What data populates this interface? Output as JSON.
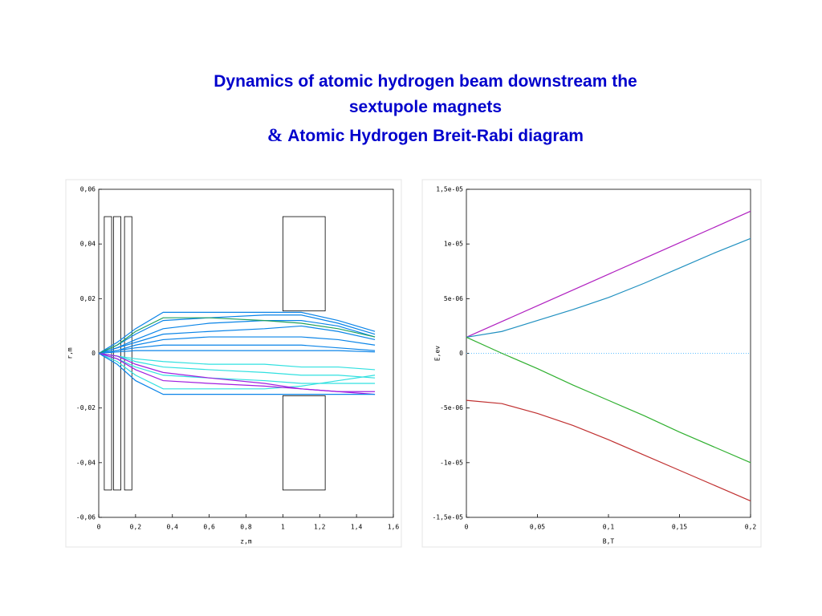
{
  "title": {
    "lines": [
      "Dynamics of atomic hydrogen beam downstream the",
      "sextupole magnets"
    ],
    "ampersand": "&",
    "last": "Atomic Hydrogen Breit-Rabi diagram"
  },
  "chart_data": [
    {
      "type": "line",
      "xlabel": "z,m",
      "ylabel": "r,m",
      "xlim": [
        0,
        1.6
      ],
      "ylim": [
        -0.06,
        0.06
      ],
      "xticks": [
        0,
        {
          "value": 0.2,
          "label": "0,2"
        },
        {
          "value": 0.4,
          "label": "0,4"
        },
        {
          "value": 0.6,
          "label": "0,6"
        },
        {
          "value": 0.8,
          "label": "0,8"
        },
        1,
        {
          "value": 1.2,
          "label": "1,2"
        },
        {
          "value": 1.4,
          "label": "1,4"
        },
        {
          "value": 1.6,
          "label": "1,6"
        }
      ],
      "yticks": [
        {
          "value": 0.06,
          "label": "0,06"
        },
        {
          "value": 0.04,
          "label": "0,04"
        },
        {
          "value": 0.02,
          "label": "0,02"
        },
        0,
        {
          "value": -0.02,
          "label": "-0,02"
        },
        {
          "value": -0.04,
          "label": "-0,04"
        },
        {
          "value": -0.06,
          "label": "-0,06"
        }
      ],
      "magnets": [
        {
          "x": [
            0.03,
            0.07
          ],
          "y": [
            -0.05,
            0.05
          ]
        },
        {
          "x": [
            0.08,
            0.12
          ],
          "y": [
            -0.05,
            0.05
          ]
        },
        {
          "x": [
            0.14,
            0.18
          ],
          "y": [
            -0.05,
            0.05
          ]
        },
        {
          "x": [
            1.0,
            1.23
          ],
          "y": [
            0.0155,
            0.05
          ]
        },
        {
          "x": [
            1.0,
            1.23
          ],
          "y": [
            -0.05,
            -0.0155
          ]
        }
      ],
      "x": [
        0,
        0.1,
        0.2,
        0.35,
        0.6,
        0.9,
        1.1,
        1.3,
        1.5
      ],
      "series": [
        {
          "color": "#0a84e8",
          "values": [
            0,
            0.004,
            0.009,
            0.015,
            0.015,
            0.015,
            0.015,
            0.012,
            0.008
          ]
        },
        {
          "color": "#0a84e8",
          "values": [
            0,
            0.003,
            0.007,
            0.012,
            0.013,
            0.014,
            0.014,
            0.011,
            0.007
          ]
        },
        {
          "color": "#0a84e8",
          "values": [
            0,
            0.002,
            0.005,
            0.009,
            0.011,
            0.012,
            0.012,
            0.01,
            0.006
          ]
        },
        {
          "color": "#0a84e8",
          "values": [
            0,
            0.002,
            0.004,
            0.007,
            0.008,
            0.009,
            0.01,
            0.008,
            0.005
          ]
        },
        {
          "color": "#0a84e8",
          "values": [
            0,
            0.001,
            0.003,
            0.005,
            0.006,
            0.006,
            0.006,
            0.005,
            0.003
          ]
        },
        {
          "color": "#0a84e8",
          "values": [
            0,
            0.001,
            0.002,
            0.003,
            0.003,
            0.003,
            0.003,
            0.002,
            0.001
          ]
        },
        {
          "color": "#0a84e8",
          "values": [
            0,
            0.0005,
            0.001,
            0.001,
            0.001,
            0.001,
            0.001,
            0.001,
            0.0005
          ]
        },
        {
          "color": "#20a060",
          "values": [
            0,
            0.003,
            0.008,
            0.013,
            0.013,
            0.012,
            0.011,
            0.009,
            0.006
          ]
        },
        {
          "color": "#30e0e0",
          "values": [
            0,
            -0.003,
            -0.008,
            -0.013,
            -0.013,
            -0.013,
            -0.012,
            -0.01,
            -0.008
          ]
        },
        {
          "color": "#30e0e0",
          "values": [
            0,
            -0.002,
            -0.005,
            -0.008,
            -0.009,
            -0.01,
            -0.011,
            -0.011,
            -0.011
          ]
        },
        {
          "color": "#30e0e0",
          "values": [
            0,
            -0.001,
            -0.003,
            -0.005,
            -0.006,
            -0.007,
            -0.008,
            -0.008,
            -0.009
          ]
        },
        {
          "color": "#30e0e0",
          "values": [
            0,
            -0.001,
            -0.002,
            -0.003,
            -0.004,
            -0.004,
            -0.005,
            -0.005,
            -0.006
          ]
        },
        {
          "color": "#a020e0",
          "values": [
            0,
            -0.002,
            -0.006,
            -0.01,
            -0.011,
            -0.012,
            -0.013,
            -0.014,
            -0.015
          ]
        },
        {
          "color": "#a020e0",
          "values": [
            0,
            -0.001,
            -0.004,
            -0.007,
            -0.009,
            -0.011,
            -0.013,
            -0.014,
            -0.014
          ]
        },
        {
          "color": "#0a84e8",
          "values": [
            0,
            -0.004,
            -0.01,
            -0.015,
            -0.015,
            -0.015,
            -0.015,
            -0.015,
            -0.015
          ]
        }
      ]
    },
    {
      "type": "line",
      "xlabel": "B,T",
      "ylabel": "E,ev",
      "zero_line": true,
      "xlim": [
        0,
        0.2
      ],
      "ylim": [
        -1.5e-05,
        1.5e-05
      ],
      "xticks": [
        0,
        {
          "value": 0.05,
          "label": "0,05"
        },
        {
          "value": 0.1,
          "label": "0,1"
        },
        {
          "value": 0.15,
          "label": "0,15"
        },
        {
          "value": 0.2,
          "label": "0,2"
        }
      ],
      "yticks": [
        {
          "value": 1.5e-05,
          "label": "1,5e-05"
        },
        {
          "value": 1e-05,
          "label": "1e-05"
        },
        {
          "value": 5e-06,
          "label": "5e-06"
        },
        0,
        {
          "value": -5e-06,
          "label": "-5e-06"
        },
        {
          "value": -1e-05,
          "label": "-1e-05"
        },
        {
          "value": -1.5e-05,
          "label": "-1,5e-05"
        }
      ],
      "x": [
        0,
        0.025,
        0.05,
        0.075,
        0.1,
        0.125,
        0.15,
        0.175,
        0.2
      ],
      "series": [
        {
          "color": "#b020c0",
          "values": [
            1.47e-06,
            2.91e-06,
            4.35e-06,
            5.79e-06,
            7.23e-06,
            8.67e-06,
            1.011e-05,
            1.155e-05,
            1.3e-05
          ]
        },
        {
          "color": "#2090c0",
          "values": [
            1.47e-06,
            2e-06,
            3e-06,
            4e-06,
            5.1e-06,
            6.4e-06,
            7.8e-06,
            9.2e-06,
            1.05e-05
          ]
        },
        {
          "color": "#30b030",
          "values": [
            1.47e-06,
            0,
            -1.4e-06,
            -2.9e-06,
            -4.3e-06,
            -5.7e-06,
            -7.2e-06,
            -8.6e-06,
            -1e-05
          ]
        },
        {
          "color": "#c03030",
          "values": [
            -4.3e-06,
            -4.6e-06,
            -5.5e-06,
            -6.6e-06,
            -7.9e-06,
            -9.3e-06,
            -1.07e-05,
            -1.21e-05,
            -1.35e-05
          ]
        }
      ]
    }
  ]
}
